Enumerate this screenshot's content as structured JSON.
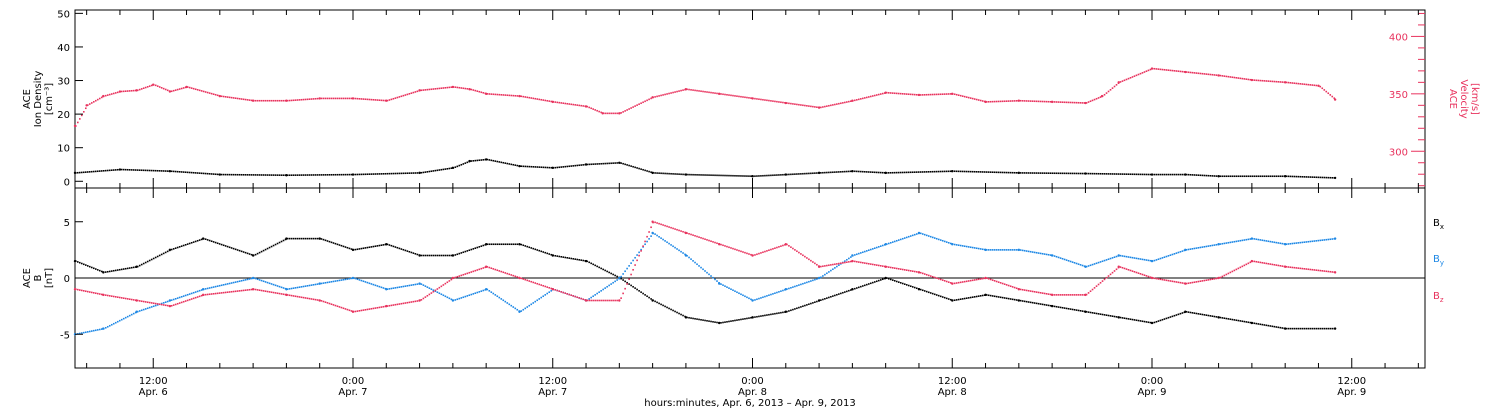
{
  "colors": {
    "black": "#000000",
    "pink": "#e8335e",
    "blue": "#1e88e5"
  },
  "x_axis": {
    "title": "hours:minutes, Apr.  6, 2013 – Apr.  9, 2013",
    "ticks": [
      {
        "time": "12:00",
        "date": "Apr. 6",
        "hours": 12
      },
      {
        "time": "0:00",
        "date": "Apr. 7",
        "hours": 24
      },
      {
        "time": "12:00",
        "date": "Apr. 7",
        "hours": 36
      },
      {
        "time": "0:00",
        "date": "Apr. 8",
        "hours": 48
      },
      {
        "time": "12:00",
        "date": "Apr. 8",
        "hours": 60
      },
      {
        "time": "0:00",
        "date": "Apr. 9",
        "hours": 72
      },
      {
        "time": "12:00",
        "date": "Apr. 9",
        "hours": 84
      }
    ],
    "range_hours": [
      7.3,
      88.4
    ]
  },
  "panel_top": {
    "left_label": [
      "ACE",
      "Ion Density",
      "[cm⁻³]"
    ],
    "right_label": [
      "ACE",
      "Velocity",
      "[km/s]"
    ],
    "left_ticks": [
      "0",
      "10",
      "20",
      "30",
      "40",
      "50"
    ],
    "left_range": [
      -2,
      51
    ],
    "right_ticks": [
      "300",
      "350",
      "400"
    ],
    "right_range": [
      268,
      423
    ]
  },
  "panel_bottom": {
    "left_label": [
      "ACE",
      "B",
      "[nT]"
    ],
    "left_ticks": [
      "-5",
      "0",
      "5"
    ],
    "left_range": [
      -8,
      8
    ],
    "legend": [
      {
        "name": "B",
        "sub": "x",
        "color": "#000000"
      },
      {
        "name": "B",
        "sub": "y",
        "color": "#1e88e5"
      },
      {
        "name": "B",
        "sub": "z",
        "color": "#e8335e"
      }
    ]
  },
  "chart_data": [
    {
      "type": "scatter",
      "title": "",
      "xlabel": "hours:minutes, Apr.  6, 2013 – Apr.  9, 2013",
      "ylabel": "ACE Ion Density [cm⁻³]",
      "y2label": "ACE Velocity [km/s]",
      "ylim": [
        -2,
        51
      ],
      "y2lim": [
        268,
        423
      ],
      "series": [
        {
          "name": "Ion Density",
          "axis": "left",
          "color": "#000000",
          "x": [
            7.3,
            10,
            13,
            16,
            20,
            24,
            28,
            30,
            31,
            32,
            34,
            36,
            38,
            40,
            42,
            44,
            48,
            50,
            52,
            54,
            56,
            60,
            64,
            68,
            72,
            74,
            76,
            80,
            83
          ],
          "y": [
            2.5,
            3.5,
            3,
            2,
            1.8,
            2,
            2.5,
            4,
            6,
            6.5,
            4.5,
            4,
            5,
            5.5,
            2.5,
            2,
            1.5,
            2,
            2.5,
            3,
            2.5,
            3,
            2.5,
            2.3,
            2,
            2,
            1.5,
            1.5,
            1
          ]
        },
        {
          "name": "Velocity",
          "axis": "right",
          "color": "#e8335e",
          "x": [
            7.3,
            8,
            9,
            10,
            11,
            12,
            13,
            14,
            16,
            18,
            20,
            22,
            24,
            26,
            28,
            30,
            31,
            32,
            34,
            36,
            38,
            39,
            40,
            42,
            44,
            46,
            48,
            50,
            52,
            54,
            56,
            58,
            60,
            62,
            64,
            66,
            68,
            69,
            70,
            72,
            74,
            76,
            78,
            80,
            82,
            83
          ],
          "y": [
            322,
            340,
            348,
            352,
            353,
            358,
            352,
            356,
            348,
            344,
            344,
            346,
            346,
            344,
            353,
            356,
            354,
            350,
            348,
            343,
            339,
            333,
            333,
            347,
            354,
            350,
            346,
            342,
            338,
            344,
            351,
            349,
            350,
            343,
            344,
            343,
            342,
            348,
            360,
            372,
            369,
            366,
            362,
            360,
            357,
            345
          ]
        }
      ]
    },
    {
      "type": "scatter",
      "title": "",
      "xlabel": "hours:minutes, Apr.  6, 2013 – Apr.  9, 2013",
      "ylabel": "ACE B [nT]",
      "ylim": [
        -8,
        8
      ],
      "series": [
        {
          "name": "Bx",
          "color": "#000000",
          "x": [
            7.3,
            9,
            11,
            13,
            15,
            18,
            20,
            22,
            24,
            26,
            28,
            30,
            32,
            34,
            36,
            38,
            40,
            42,
            44,
            46,
            48,
            50,
            52,
            54,
            56,
            58,
            60,
            62,
            64,
            66,
            68,
            70,
            72,
            74,
            76,
            78,
            80,
            83
          ],
          "y": [
            1.5,
            0.5,
            1,
            2.5,
            3.5,
            2,
            3.5,
            3.5,
            2.5,
            3,
            2,
            2,
            3,
            3,
            2,
            1.5,
            0,
            -2,
            -3.5,
            -4,
            -3.5,
            -3,
            -2,
            -1,
            0,
            -1,
            -2,
            -1.5,
            -2,
            -2.5,
            -3,
            -3.5,
            -4,
            -3,
            -3.5,
            -4,
            -4.5,
            -4.5
          ]
        },
        {
          "name": "By",
          "color": "#1e88e5",
          "x": [
            7.3,
            9,
            11,
            13,
            15,
            18,
            20,
            22,
            24,
            26,
            28,
            30,
            32,
            34,
            36,
            38,
            40,
            42,
            44,
            46,
            48,
            50,
            52,
            54,
            56,
            58,
            60,
            62,
            64,
            66,
            68,
            70,
            72,
            74,
            76,
            78,
            80,
            83
          ],
          "y": [
            -5,
            -4.5,
            -3,
            -2,
            -1,
            0,
            -1,
            -0.5,
            0,
            -1,
            -0.5,
            -2,
            -1,
            -3,
            -1,
            -2,
            0,
            4,
            2,
            -0.5,
            -2,
            -1,
            0,
            2,
            3,
            4,
            3,
            2.5,
            2.5,
            2,
            1,
            2,
            1.5,
            2.5,
            3,
            3.5,
            3,
            3.5
          ]
        },
        {
          "name": "Bz",
          "color": "#e8335e",
          "x": [
            7.3,
            9,
            11,
            13,
            15,
            18,
            20,
            22,
            24,
            26,
            28,
            30,
            32,
            34,
            36,
            38,
            40,
            42,
            44,
            46,
            48,
            50,
            52,
            54,
            56,
            58,
            60,
            62,
            64,
            66,
            68,
            70,
            72,
            74,
            76,
            78,
            80,
            83
          ],
          "y": [
            -1,
            -1.5,
            -2,
            -2.5,
            -1.5,
            -1,
            -1.5,
            -2,
            -3,
            -2.5,
            -2,
            0,
            1,
            0,
            -1,
            -2,
            -2,
            5,
            4,
            3,
            2,
            3,
            1,
            1.5,
            1,
            0.5,
            -0.5,
            0,
            -1,
            -1.5,
            -1.5,
            1,
            0,
            -0.5,
            0,
            1.5,
            1,
            0.5
          ]
        }
      ]
    }
  ]
}
